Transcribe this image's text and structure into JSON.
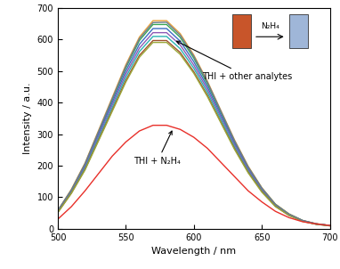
{
  "chart_data": {
    "type": "line",
    "x_label": "Wavelength / nm",
    "y_label": "Intensity / a.u.",
    "x": [
      500,
      510,
      520,
      530,
      540,
      550,
      560,
      570,
      580,
      590,
      600,
      610,
      620,
      630,
      640,
      650,
      660,
      670,
      680,
      690,
      700
    ],
    "series": [
      {
        "color": "#e8a33d",
        "values": [
          57,
          125,
          208,
          312,
          416,
          520,
          608,
          660,
          660,
          619,
          551,
          468,
          374,
          281,
          198,
          130,
          78,
          47,
          26,
          16,
          10
        ]
      },
      {
        "color": "#3aa655",
        "values": [
          56,
          122,
          204,
          306,
          408,
          510,
          597,
          648,
          648,
          607,
          541,
          459,
          367,
          275,
          194,
          128,
          77,
          46,
          26,
          15,
          10
        ]
      },
      {
        "color": "#3b6fc4",
        "values": [
          55,
          120,
          200,
          300,
          400,
          500,
          585,
          635,
          635,
          595,
          530,
          450,
          360,
          270,
          190,
          125,
          75,
          45,
          25,
          15,
          10
        ]
      },
      {
        "color": "#8e5bb5",
        "values": [
          54,
          118,
          196,
          294,
          392,
          490,
          573,
          622,
          622,
          583,
          519,
          441,
          353,
          265,
          186,
          123,
          74,
          44,
          25,
          15,
          10
        ]
      },
      {
        "color": "#2bb3b3",
        "values": [
          53,
          115,
          192,
          288,
          384,
          480,
          562,
          610,
          610,
          571,
          509,
          432,
          346,
          259,
          182,
          120,
          72,
          43,
          24,
          14,
          10
        ]
      },
      {
        "color": "#a0522d",
        "values": [
          52,
          113,
          188,
          282,
          376,
          470,
          550,
          597,
          597,
          559,
          498,
          423,
          338,
          254,
          179,
          118,
          71,
          42,
          24,
          14,
          9
        ]
      },
      {
        "color": "#9aa83a",
        "values": [
          51,
          112,
          186,
          279,
          372,
          465,
          544,
          591,
          591,
          553,
          493,
          419,
          335,
          251,
          177,
          116,
          70,
          42,
          23,
          14,
          9
        ]
      },
      {
        "color": "#6d7b8d",
        "values": [
          58,
          123,
          206,
          309,
          412,
          515,
          603,
          654,
          655,
          614,
          547,
          465,
          372,
          279,
          196,
          129,
          77,
          46,
          26,
          15,
          10
        ]
      },
      {
        "color": "#e8302a",
        "values": [
          30,
          70,
          120,
          175,
          230,
          275,
          310,
          328,
          328,
          315,
          290,
          255,
          210,
          165,
          120,
          85,
          55,
          35,
          22,
          15,
          10
        ]
      }
    ],
    "annotations": [
      "THI + other analytes",
      "THI + N₂H₄",
      "N₂H₄"
    ],
    "xlim": [
      500,
      700
    ],
    "xticks": [
      500,
      550,
      600,
      650,
      700
    ],
    "ylim": [
      0,
      700
    ],
    "yticks": [
      0,
      100,
      200,
      300,
      400,
      500,
      600,
      700
    ],
    "grid": false
  }
}
